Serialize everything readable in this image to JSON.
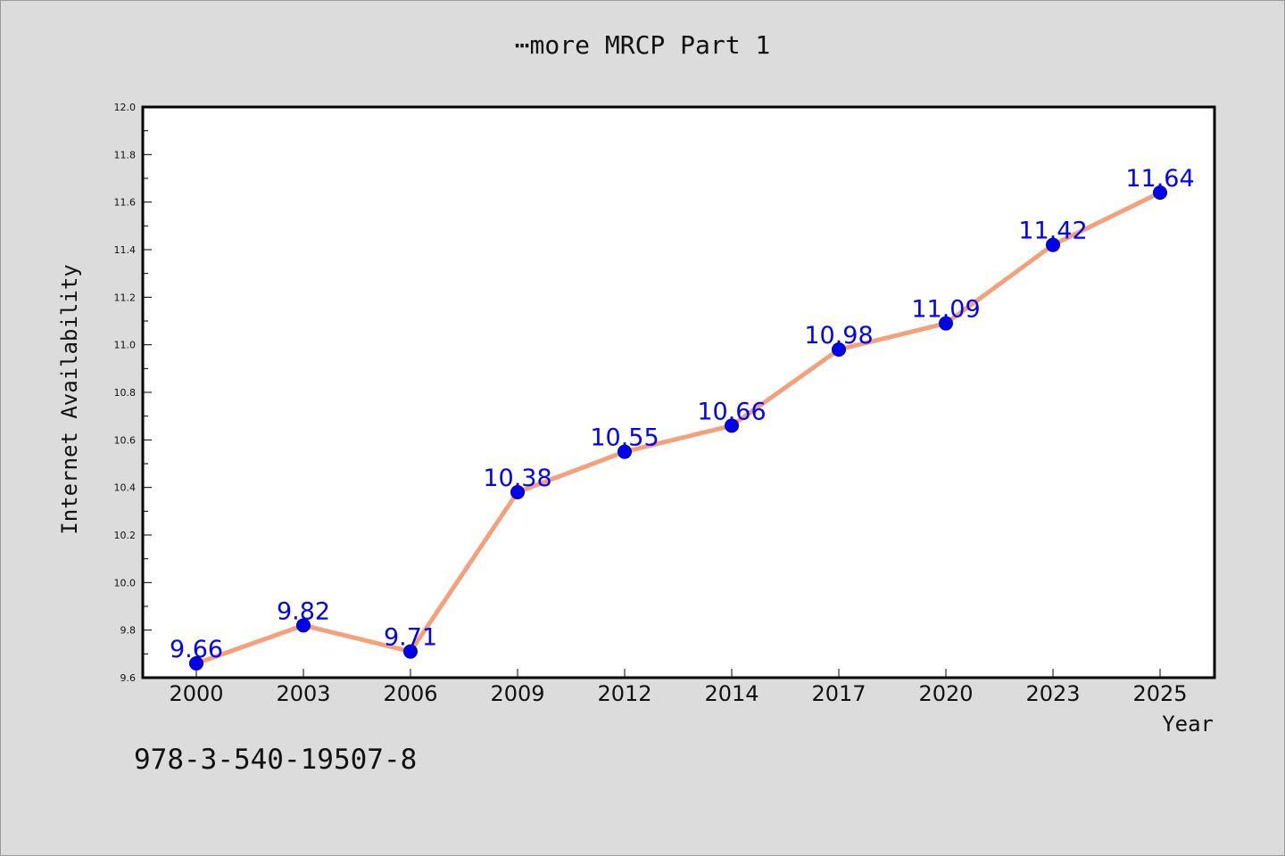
{
  "chart_data": {
    "type": "line",
    "title": "⋯more MRCP Part 1",
    "xlabel": "Year",
    "ylabel": "Internet Availability",
    "categories": [
      "2000",
      "2003",
      "2006",
      "2009",
      "2012",
      "2014",
      "2017",
      "2020",
      "2023",
      "2025"
    ],
    "series": [
      {
        "values": [
          9.66,
          9.82,
          9.71,
          10.38,
          10.55,
          10.66,
          10.98,
          11.09,
          11.42,
          11.64
        ]
      }
    ],
    "data_labels": [
      "9.66",
      "9.82",
      "9.71",
      "10.38",
      "10.55",
      "10.66",
      "10.98",
      "11.09",
      "11.42",
      "11.64"
    ],
    "ylim": [
      9.6,
      12.0
    ],
    "yticks": [
      "9.6",
      "9.8",
      "10.0",
      "10.2",
      "10.4",
      "10.6",
      "10.8",
      "11.0",
      "11.2",
      "11.4",
      "11.6",
      "11.8",
      "12.0"
    ],
    "grid": false,
    "colors": {
      "line": "#f4a07a",
      "marker": "#0000ee",
      "marker_edge": "#00008b",
      "data_label": "#0000ff"
    }
  },
  "footer": {
    "isbn": "978-3-540-19507-8"
  }
}
